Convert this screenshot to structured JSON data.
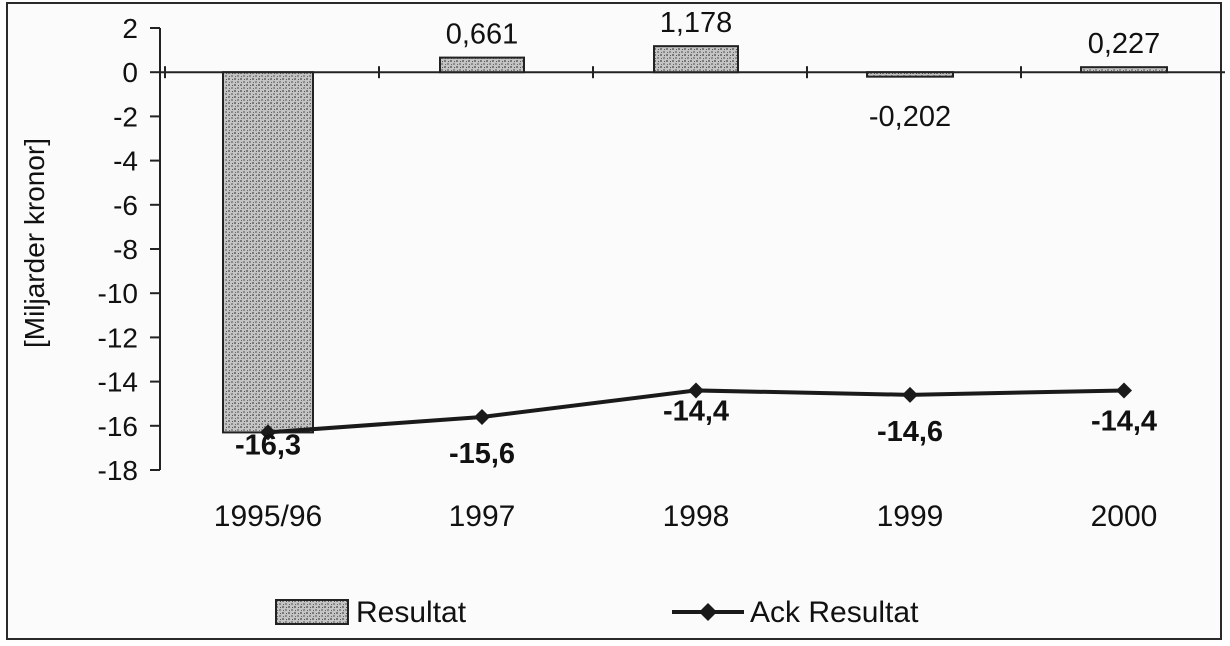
{
  "chart_data": {
    "type": "bar",
    "categories": [
      "1995/96",
      "1997",
      "1998",
      "1999",
      "2000"
    ],
    "ylabel": "[Miljarder kronor]",
    "ylim": [
      -18,
      2
    ],
    "yticks": [
      2,
      0,
      -2,
      -4,
      -6,
      -8,
      -10,
      -12,
      -14,
      -16,
      -18
    ],
    "ytick_labels": [
      "2",
      "0",
      "-2",
      "-4",
      "-6",
      "-8",
      "-10",
      "-12",
      "-14",
      "-16",
      "-18"
    ],
    "grid": false,
    "legend_position": "bottom",
    "series": [
      {
        "name": "Resultat",
        "type": "bar",
        "values": [
          -16.3,
          0.661,
          1.178,
          -0.202,
          0.227
        ],
        "labels": [
          "",
          "0,661",
          "1,178",
          "-0,202",
          "0,227"
        ]
      },
      {
        "name": "Ack Resultat",
        "type": "line",
        "values": [
          -16.3,
          -15.6,
          -14.4,
          -14.6,
          -14.4
        ],
        "labels": [
          "-16,3",
          "-15,6",
          "-14,4",
          "-14,6",
          "-14,4"
        ]
      }
    ],
    "colors": {
      "bar_fill": "#b5b5b5",
      "bar_stroke": "#222222",
      "line": "#1a1a1a"
    }
  }
}
